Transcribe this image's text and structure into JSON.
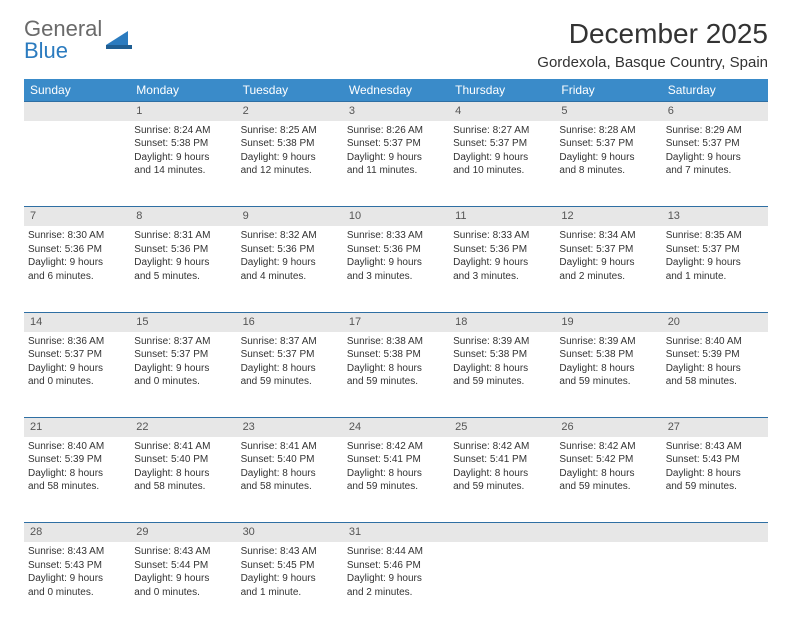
{
  "brand": {
    "name1": "General",
    "name2": "Blue"
  },
  "title": "December 2025",
  "location": "Gordexola, Basque Country, Spain",
  "colors": {
    "header_bg": "#3a8bc9",
    "header_text": "#ffffff",
    "daynum_bg": "#e7e7e7",
    "rule": "#2f6fa3",
    "brand_gray": "#6a6a6a",
    "brand_blue": "#2b7bbf"
  },
  "weekdays": [
    "Sunday",
    "Monday",
    "Tuesday",
    "Wednesday",
    "Thursday",
    "Friday",
    "Saturday"
  ],
  "weeks": [
    {
      "nums": [
        "",
        "1",
        "2",
        "3",
        "4",
        "5",
        "6"
      ],
      "cells": [
        null,
        {
          "sunrise": "Sunrise: 8:24 AM",
          "sunset": "Sunset: 5:38 PM",
          "day1": "Daylight: 9 hours",
          "day2": "and 14 minutes."
        },
        {
          "sunrise": "Sunrise: 8:25 AM",
          "sunset": "Sunset: 5:38 PM",
          "day1": "Daylight: 9 hours",
          "day2": "and 12 minutes."
        },
        {
          "sunrise": "Sunrise: 8:26 AM",
          "sunset": "Sunset: 5:37 PM",
          "day1": "Daylight: 9 hours",
          "day2": "and 11 minutes."
        },
        {
          "sunrise": "Sunrise: 8:27 AM",
          "sunset": "Sunset: 5:37 PM",
          "day1": "Daylight: 9 hours",
          "day2": "and 10 minutes."
        },
        {
          "sunrise": "Sunrise: 8:28 AM",
          "sunset": "Sunset: 5:37 PM",
          "day1": "Daylight: 9 hours",
          "day2": "and 8 minutes."
        },
        {
          "sunrise": "Sunrise: 8:29 AM",
          "sunset": "Sunset: 5:37 PM",
          "day1": "Daylight: 9 hours",
          "day2": "and 7 minutes."
        }
      ]
    },
    {
      "nums": [
        "7",
        "8",
        "9",
        "10",
        "11",
        "12",
        "13"
      ],
      "cells": [
        {
          "sunrise": "Sunrise: 8:30 AM",
          "sunset": "Sunset: 5:36 PM",
          "day1": "Daylight: 9 hours",
          "day2": "and 6 minutes."
        },
        {
          "sunrise": "Sunrise: 8:31 AM",
          "sunset": "Sunset: 5:36 PM",
          "day1": "Daylight: 9 hours",
          "day2": "and 5 minutes."
        },
        {
          "sunrise": "Sunrise: 8:32 AM",
          "sunset": "Sunset: 5:36 PM",
          "day1": "Daylight: 9 hours",
          "day2": "and 4 minutes."
        },
        {
          "sunrise": "Sunrise: 8:33 AM",
          "sunset": "Sunset: 5:36 PM",
          "day1": "Daylight: 9 hours",
          "day2": "and 3 minutes."
        },
        {
          "sunrise": "Sunrise: 8:33 AM",
          "sunset": "Sunset: 5:36 PM",
          "day1": "Daylight: 9 hours",
          "day2": "and 3 minutes."
        },
        {
          "sunrise": "Sunrise: 8:34 AM",
          "sunset": "Sunset: 5:37 PM",
          "day1": "Daylight: 9 hours",
          "day2": "and 2 minutes."
        },
        {
          "sunrise": "Sunrise: 8:35 AM",
          "sunset": "Sunset: 5:37 PM",
          "day1": "Daylight: 9 hours",
          "day2": "and 1 minute."
        }
      ]
    },
    {
      "nums": [
        "14",
        "15",
        "16",
        "17",
        "18",
        "19",
        "20"
      ],
      "cells": [
        {
          "sunrise": "Sunrise: 8:36 AM",
          "sunset": "Sunset: 5:37 PM",
          "day1": "Daylight: 9 hours",
          "day2": "and 0 minutes."
        },
        {
          "sunrise": "Sunrise: 8:37 AM",
          "sunset": "Sunset: 5:37 PM",
          "day1": "Daylight: 9 hours",
          "day2": "and 0 minutes."
        },
        {
          "sunrise": "Sunrise: 8:37 AM",
          "sunset": "Sunset: 5:37 PM",
          "day1": "Daylight: 8 hours",
          "day2": "and 59 minutes."
        },
        {
          "sunrise": "Sunrise: 8:38 AM",
          "sunset": "Sunset: 5:38 PM",
          "day1": "Daylight: 8 hours",
          "day2": "and 59 minutes."
        },
        {
          "sunrise": "Sunrise: 8:39 AM",
          "sunset": "Sunset: 5:38 PM",
          "day1": "Daylight: 8 hours",
          "day2": "and 59 minutes."
        },
        {
          "sunrise": "Sunrise: 8:39 AM",
          "sunset": "Sunset: 5:38 PM",
          "day1": "Daylight: 8 hours",
          "day2": "and 59 minutes."
        },
        {
          "sunrise": "Sunrise: 8:40 AM",
          "sunset": "Sunset: 5:39 PM",
          "day1": "Daylight: 8 hours",
          "day2": "and 58 minutes."
        }
      ]
    },
    {
      "nums": [
        "21",
        "22",
        "23",
        "24",
        "25",
        "26",
        "27"
      ],
      "cells": [
        {
          "sunrise": "Sunrise: 8:40 AM",
          "sunset": "Sunset: 5:39 PM",
          "day1": "Daylight: 8 hours",
          "day2": "and 58 minutes."
        },
        {
          "sunrise": "Sunrise: 8:41 AM",
          "sunset": "Sunset: 5:40 PM",
          "day1": "Daylight: 8 hours",
          "day2": "and 58 minutes."
        },
        {
          "sunrise": "Sunrise: 8:41 AM",
          "sunset": "Sunset: 5:40 PM",
          "day1": "Daylight: 8 hours",
          "day2": "and 58 minutes."
        },
        {
          "sunrise": "Sunrise: 8:42 AM",
          "sunset": "Sunset: 5:41 PM",
          "day1": "Daylight: 8 hours",
          "day2": "and 59 minutes."
        },
        {
          "sunrise": "Sunrise: 8:42 AM",
          "sunset": "Sunset: 5:41 PM",
          "day1": "Daylight: 8 hours",
          "day2": "and 59 minutes."
        },
        {
          "sunrise": "Sunrise: 8:42 AM",
          "sunset": "Sunset: 5:42 PM",
          "day1": "Daylight: 8 hours",
          "day2": "and 59 minutes."
        },
        {
          "sunrise": "Sunrise: 8:43 AM",
          "sunset": "Sunset: 5:43 PM",
          "day1": "Daylight: 8 hours",
          "day2": "and 59 minutes."
        }
      ]
    },
    {
      "nums": [
        "28",
        "29",
        "30",
        "31",
        "",
        "",
        ""
      ],
      "cells": [
        {
          "sunrise": "Sunrise: 8:43 AM",
          "sunset": "Sunset: 5:43 PM",
          "day1": "Daylight: 9 hours",
          "day2": "and 0 minutes."
        },
        {
          "sunrise": "Sunrise: 8:43 AM",
          "sunset": "Sunset: 5:44 PM",
          "day1": "Daylight: 9 hours",
          "day2": "and 0 minutes."
        },
        {
          "sunrise": "Sunrise: 8:43 AM",
          "sunset": "Sunset: 5:45 PM",
          "day1": "Daylight: 9 hours",
          "day2": "and 1 minute."
        },
        {
          "sunrise": "Sunrise: 8:44 AM",
          "sunset": "Sunset: 5:46 PM",
          "day1": "Daylight: 9 hours",
          "day2": "and 2 minutes."
        },
        null,
        null,
        null
      ]
    }
  ]
}
